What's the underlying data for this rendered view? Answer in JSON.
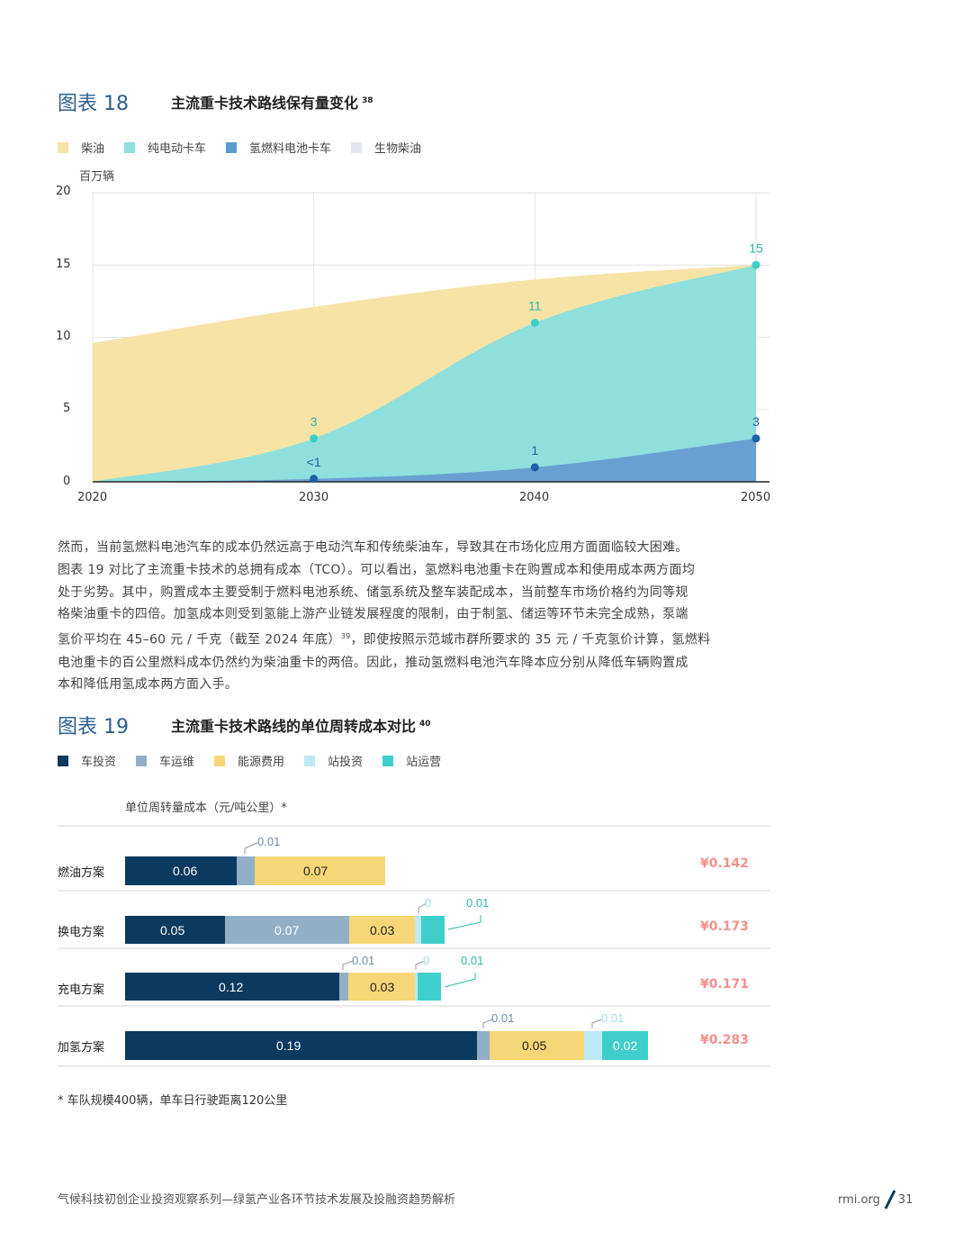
{
  "figure18": {
    "number": "图表 18",
    "title": "主流重卡技术路线保有量变化",
    "ref": "38",
    "legend": [
      {
        "label": "柴油",
        "color": "#f7e3a6"
      },
      {
        "label": "纯电动卡车",
        "color": "#8ee0dd"
      },
      {
        "label": "氢燃料电池卡车",
        "color": "#5b9bd0"
      },
      {
        "label": "生物柴油",
        "color": "#e4e6ef"
      }
    ],
    "chart_data": {
      "type": "area",
      "ylabel": "百万辆",
      "ylim": [
        0,
        20
      ],
      "yticks": [
        "0",
        "5",
        "10",
        "15",
        "20"
      ],
      "x": [
        "2020",
        "2030",
        "2040",
        "2050"
      ],
      "series": [
        {
          "name": "氢燃料电池卡车",
          "values": [
            0,
            0.2,
            1,
            3
          ],
          "color": "#6a9fd2"
        },
        {
          "name": "纯电动卡车",
          "values": [
            0,
            3,
            11,
            15
          ],
          "color": "#8ee0dd"
        },
        {
          "name": "柴油",
          "values": [
            9.6,
            12.1,
            14.0,
            15
          ],
          "color": "#f7e3a6"
        }
      ],
      "annotations": [
        {
          "x": 2030,
          "y": 3,
          "text": "3",
          "color": "#2bb6ad"
        },
        {
          "x": 2040,
          "y": 11,
          "text": "11",
          "color": "#2bb6ad"
        },
        {
          "x": 2050,
          "y": 15,
          "text": "15",
          "color": "#2bb6ad"
        },
        {
          "x": 2030,
          "y": 0.2,
          "text": "<1",
          "color": "#1f5fa6"
        },
        {
          "x": 2040,
          "y": 1,
          "text": "1",
          "color": "#1f5fa6"
        },
        {
          "x": 2050,
          "y": 3,
          "text": "3",
          "color": "#1f5fa6"
        }
      ]
    }
  },
  "paragraph": {
    "l1": "然而，当前氢燃料电池汽车的成本仍然远高于电动汽车和传统柴油车，导致其在市场化应用方面面临较大困难。",
    "l2": "图表 19 对比了主流重卡技术的总拥有成本（TCO）。可以看出，氢燃料电池重卡在购置成本和使用成本两方面均",
    "l3": "处于劣势。其中，购置成本主要受制于燃料电池系统、储氢系统及整车装配成本，当前整车市场价格约为同等规",
    "l4": "格柴油重卡的四倍。加氢成本则受到氢能上游产业链发展程度的限制，由于制氢、储运等环节未完全成熟，泵端",
    "l5a": "氢价平均在 45–60 元 / 千克（截至 2024 年底）",
    "l5ref": "39",
    "l5b": "，即使按照示范城市群所要求的 35 元 / 千克氢价计算，氢燃料",
    "l6": "电池重卡的百公里燃料成本仍然约为柴油重卡的两倍。因此，推动氢燃料电池汽车降本应分别从降低车辆购置成",
    "l7": "本和降低用氢成本两方面入手。"
  },
  "figure19": {
    "number": "图表 19",
    "title": "主流重卡技术路线的单位周转成本对比",
    "ref": "40",
    "legend": [
      {
        "label": "车投资",
        "color": "#0a3a60"
      },
      {
        "label": "车运维",
        "color": "#93afc7"
      },
      {
        "label": "能源费用",
        "color": "#f6d676"
      },
      {
        "label": "站投资",
        "color": "#bde9f4"
      },
      {
        "label": "站运营",
        "color": "#3ecfcb"
      }
    ],
    "chart_data": {
      "type": "bar",
      "orientation": "horizontal",
      "stacked": true,
      "ylabel": "单位周转量成本（元/吨公里）*",
      "categories": [
        "燃油方案",
        "换电方案",
        "充电方案",
        "加氢方案"
      ],
      "series": [
        {
          "name": "车投资",
          "values": [
            0.06,
            0.05,
            0.12,
            0.19
          ]
        },
        {
          "name": "车运维",
          "values": [
            0.01,
            0.07,
            0.01,
            0.01
          ]
        },
        {
          "name": "能源费用",
          "values": [
            0.07,
            0.03,
            0.03,
            0.05
          ]
        },
        {
          "name": "站投资",
          "values": [
            0,
            0.0,
            0.0,
            0.01
          ]
        },
        {
          "name": "站运营",
          "values": [
            0,
            0.01,
            0.01,
            0.02
          ]
        }
      ],
      "totals": [
        "¥0.142",
        "¥0.173",
        "¥0.171",
        "¥0.283"
      ]
    },
    "footnote": "* 车队规模400辆，单车日行驶距离120公里"
  },
  "footer": {
    "left": "气候科技初创企业投资观察系列—绿氢产业各环节技术发展及投融资趋势解析",
    "site": "rmi.org",
    "page": "31"
  }
}
